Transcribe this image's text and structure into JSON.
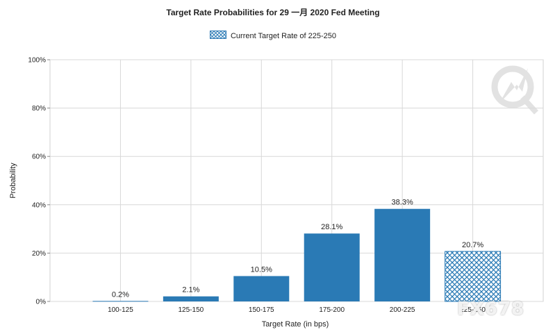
{
  "chart_data": {
    "type": "bar",
    "title": "Target Rate Probabilities for 29 一月 2020 Fed Meeting",
    "legend": {
      "label": "Current Target Rate of 225-250",
      "position": "top-center"
    },
    "xlabel": "Target Rate (in bps)",
    "ylabel": "Probability",
    "categories": [
      "100-125",
      "125-150",
      "150-175",
      "175-200",
      "200-225",
      "225-250"
    ],
    "values": [
      0.2,
      2.1,
      10.5,
      28.1,
      38.3,
      20.7
    ],
    "data_labels": [
      "0.2%",
      "2.1%",
      "10.5%",
      "28.1%",
      "38.3%",
      "20.7%"
    ],
    "ylim": [
      0,
      100
    ],
    "yticks": [
      "0%",
      "20%",
      "40%",
      "60%",
      "80%",
      "100%"
    ],
    "grid": true,
    "bar_color": "#2a7ab5",
    "current_target_index": 5
  },
  "watermark": {
    "text": "FX678"
  }
}
